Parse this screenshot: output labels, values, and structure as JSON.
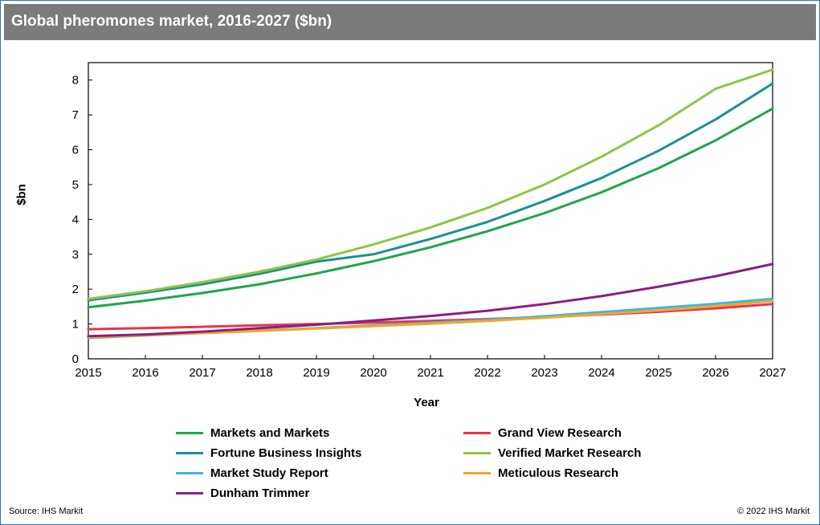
{
  "header": {
    "title": "Global pheromones market, 2016-2027 ($bn)"
  },
  "footer": {
    "source": "Source: IHS Markit",
    "copyright": "© 2022 IHS Markit"
  },
  "chart_data": {
    "type": "line",
    "title": "Global pheromones market, 2016-2027 ($bn)",
    "xlabel": "Year",
    "ylabel": "$bn",
    "x": [
      2015,
      2016,
      2017,
      2018,
      2019,
      2020,
      2021,
      2022,
      2023,
      2024,
      2025,
      2026,
      2027
    ],
    "x_tick_labels": [
      "2015",
      "2016",
      "2017",
      "2018",
      "2019",
      "2020",
      "2021",
      "2022",
      "2023",
      "2024",
      "2025",
      "2026",
      "2027"
    ],
    "y_tick_labels": [
      "0",
      "1",
      "2",
      "3",
      "4",
      "5",
      "6",
      "7",
      "8"
    ],
    "xlim": [
      2015,
      2027
    ],
    "ylim": [
      0,
      8.5
    ],
    "grid": false,
    "legend_position": "bottom",
    "series": [
      {
        "name": "Markets and Markets",
        "color": "#1fa64b",
        "values": [
          1.48,
          1.67,
          1.89,
          2.14,
          2.45,
          2.8,
          3.2,
          3.66,
          4.18,
          4.78,
          5.47,
          6.27,
          7.18
        ]
      },
      {
        "name": "Grand View Research",
        "color": "#e8344e",
        "values": [
          0.85,
          0.88,
          0.92,
          0.96,
          1.0,
          1.04,
          1.09,
          1.14,
          1.2,
          1.27,
          1.35,
          1.45,
          1.57
        ]
      },
      {
        "name": "Fortune Business Insights",
        "color": "#1a9191",
        "values": [
          1.68,
          1.9,
          2.14,
          2.44,
          2.79,
          3.0,
          3.44,
          3.93,
          4.53,
          5.19,
          5.97,
          6.87,
          7.9
        ]
      },
      {
        "name": "Verified Market Research",
        "color": "#8dc63f",
        "values": [
          1.72,
          1.94,
          2.2,
          2.5,
          2.85,
          3.28,
          3.77,
          4.33,
          5.0,
          5.8,
          6.7,
          7.75,
          8.3
        ]
      },
      {
        "name": "Market Study Report",
        "color": "#3bb7e0",
        "values": [
          0.6,
          0.67,
          0.74,
          0.81,
          0.88,
          0.96,
          1.04,
          1.12,
          1.22,
          1.34,
          1.46,
          1.58,
          1.72
        ]
      },
      {
        "name": "Meticulous Research",
        "color": "#f5a623",
        "values": [
          0.62,
          0.68,
          0.74,
          0.8,
          0.87,
          0.94,
          1.01,
          1.09,
          1.18,
          1.28,
          1.39,
          1.51,
          1.66
        ]
      },
      {
        "name": "Dunham Trimmer",
        "color": "#8b1f82",
        "values": [
          0.65,
          0.7,
          0.78,
          0.88,
          0.98,
          1.1,
          1.23,
          1.38,
          1.57,
          1.8,
          2.07,
          2.37,
          2.72
        ]
      }
    ]
  }
}
